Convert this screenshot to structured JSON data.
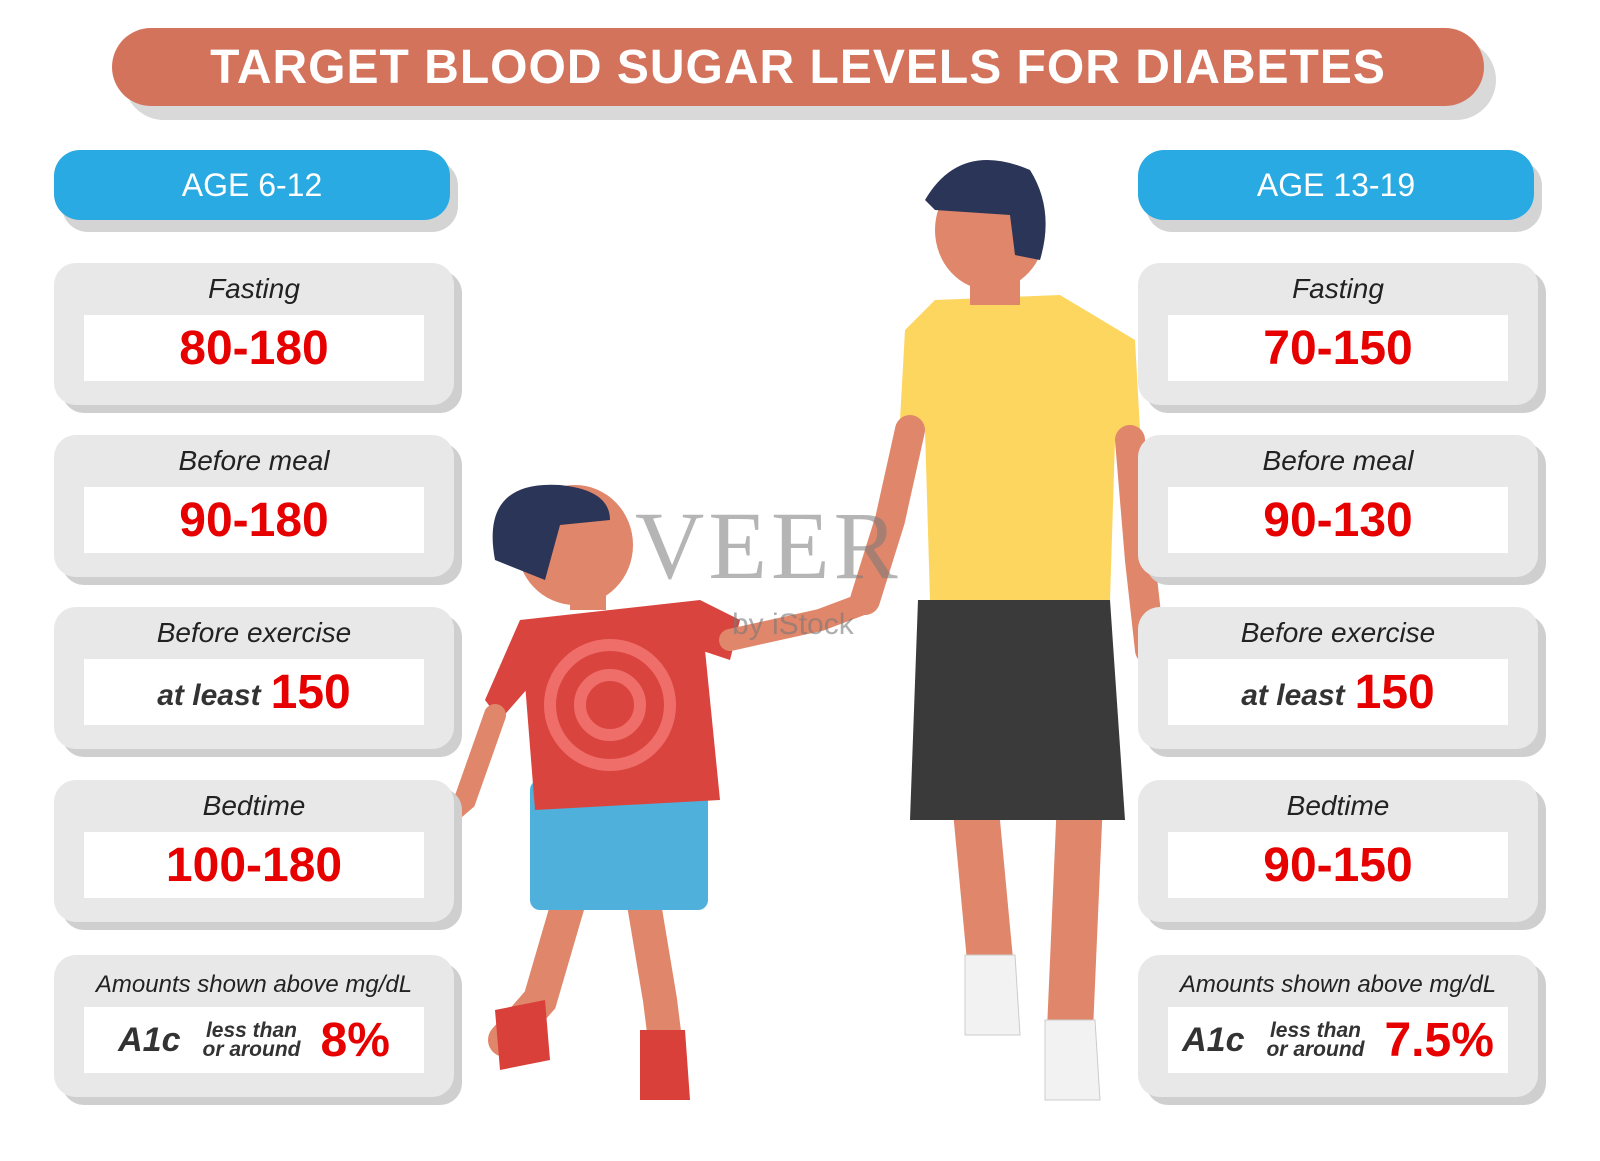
{
  "title": "TARGET BLOOD SUGAR LEVELS FOR DIABETES",
  "columns": [
    {
      "age": "AGE 6-12",
      "cards": [
        {
          "label": "Fasting",
          "value": "80-180"
        },
        {
          "label": "Before meal",
          "value": "90-180"
        },
        {
          "label": "Before exercise",
          "prefix": "at least",
          "value": "150"
        },
        {
          "label": "Bedtime",
          "value": "100-180"
        }
      ],
      "note": "Amounts shown above mg/dL",
      "a1c": {
        "label": "A1c",
        "qualifier_1": "less than",
        "qualifier_2": "or around",
        "value": "8%"
      }
    },
    {
      "age": "AGE 13-19",
      "cards": [
        {
          "label": "Fasting",
          "value": "70-150"
        },
        {
          "label": "Before meal",
          "value": "90-130"
        },
        {
          "label": "Before exercise",
          "prefix": "at least",
          "value": "150"
        },
        {
          "label": "Bedtime",
          "value": "90-150"
        }
      ],
      "note": "Amounts shown above mg/dL",
      "a1c": {
        "label": "A1c",
        "qualifier_1": "less than",
        "qualifier_2": "or around",
        "value": "7.5%"
      }
    }
  ],
  "watermark": {
    "brand": "VEER",
    "sub": "by iStock"
  }
}
